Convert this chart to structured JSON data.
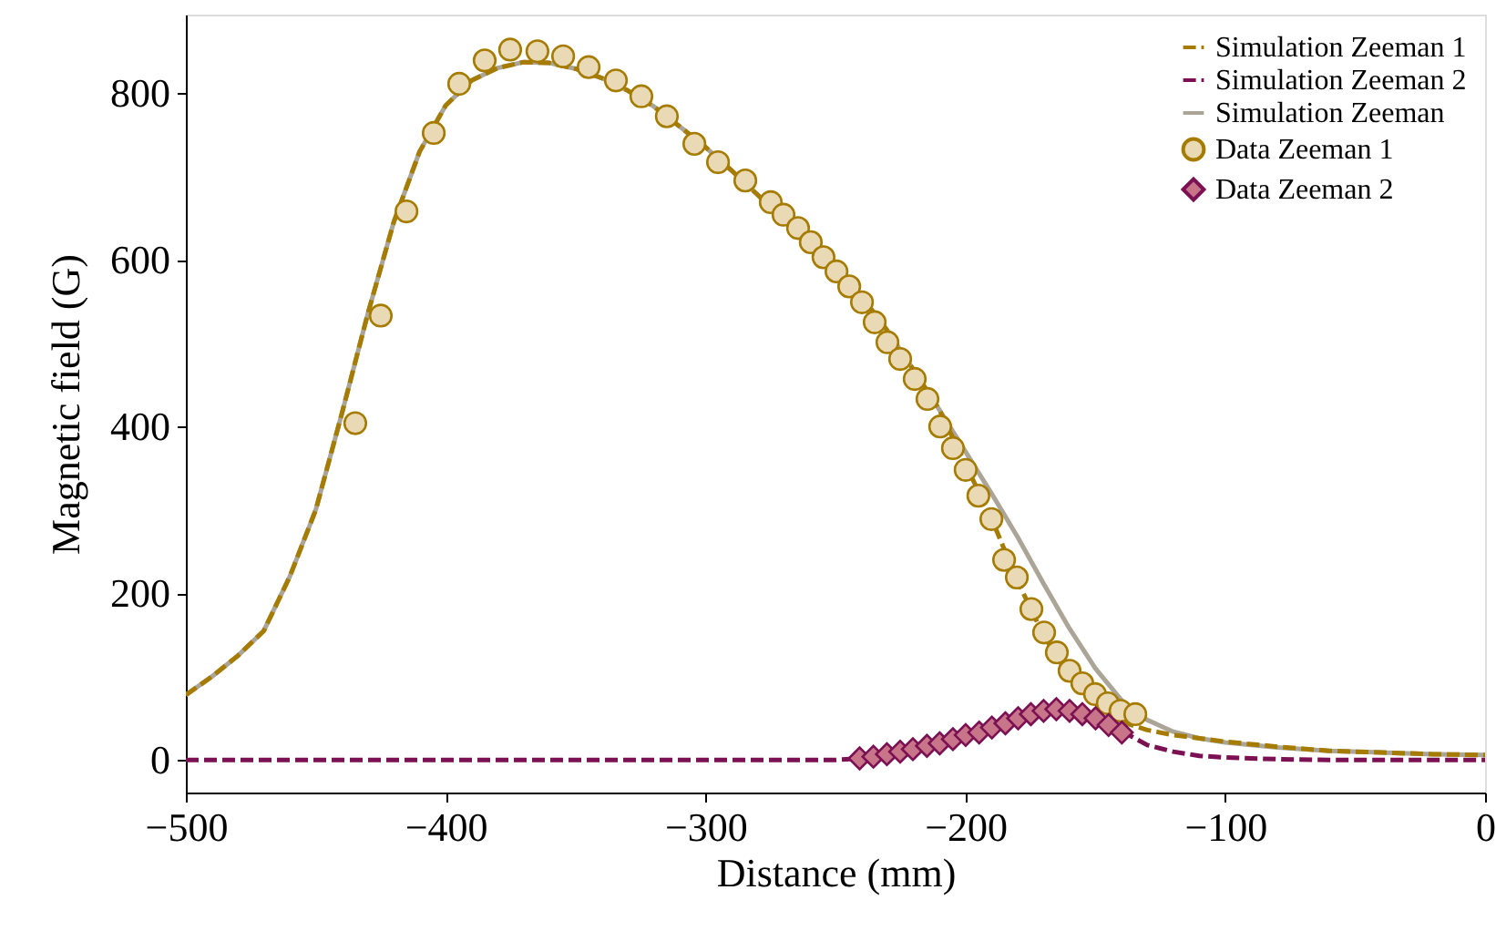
{
  "chart_data": {
    "type": "line",
    "xlabel": "Distance (mm)",
    "ylabel": "Magnetic field (G)",
    "xlim": [
      -500,
      0
    ],
    "ylim": [
      -39,
      894
    ],
    "xticks": [
      -500,
      -400,
      -300,
      -200,
      -100,
      0
    ],
    "yticks": [
      0,
      200,
      400,
      600,
      800
    ],
    "grid": false,
    "legend": "top right",
    "series": [
      {
        "name": "Simulation Zeeman 1",
        "line_style": "dashed",
        "color": "#a67c00",
        "x": [
          -500,
          -490,
          -480,
          -470,
          -460,
          -450,
          -440,
          -430,
          -420,
          -410,
          -400,
          -390,
          -380,
          -370,
          -360,
          -350,
          -340,
          -330,
          -320,
          -310,
          -300,
          -290,
          -280,
          -270,
          -260,
          -250,
          -240,
          -230,
          -220,
          -210,
          -200,
          -190,
          -180,
          -170,
          -160,
          -150,
          -140,
          -130,
          -120,
          -100,
          -80,
          -60,
          -40,
          -20,
          0
        ],
        "values": [
          78,
          100,
          125,
          155,
          220,
          300,
          415,
          535,
          645,
          730,
          785,
          815,
          830,
          837,
          836,
          829,
          818,
          803,
          784,
          760,
          735,
          707,
          678,
          648,
          620,
          590,
          556,
          515,
          468,
          420,
          355,
          290,
          215,
          150,
          100,
          68,
          46,
          36,
          30,
          22,
          16,
          11,
          9,
          7,
          6
        ]
      },
      {
        "name": "Simulation Zeeman 2",
        "line_style": "dashed",
        "color": "#7b1053",
        "x": [
          -500,
          -250,
          -240,
          -230,
          -220,
          -210,
          -200,
          -190,
          -180,
          -170,
          -160,
          -150,
          -140,
          -130,
          -120,
          -110,
          -100,
          -80,
          -60,
          0
        ],
        "values": [
          0,
          0,
          2,
          6,
          12,
          19,
          29,
          39,
          50,
          59,
          61,
          52,
          35,
          18,
          10,
          5,
          3,
          1,
          0,
          0
        ]
      },
      {
        "name": "Simulation Zeeman",
        "line_style": "solid",
        "color": "#aaa596",
        "x": [
          -500,
          -490,
          -480,
          -470,
          -460,
          -450,
          -440,
          -430,
          -420,
          -410,
          -400,
          -390,
          -380,
          -370,
          -360,
          -350,
          -340,
          -330,
          -320,
          -310,
          -300,
          -290,
          -280,
          -270,
          -260,
          -250,
          -240,
          -230,
          -220,
          -210,
          -200,
          -190,
          -180,
          -170,
          -160,
          -150,
          -140,
          -130,
          -120,
          -110,
          -100,
          -80,
          -60,
          -40,
          -20,
          0
        ],
        "values": [
          78,
          100,
          125,
          155,
          220,
          300,
          415,
          535,
          645,
          730,
          785,
          815,
          830,
          837,
          836,
          829,
          818,
          803,
          784,
          760,
          735,
          707,
          678,
          648,
          620,
          590,
          556,
          515,
          468,
          420,
          370,
          320,
          268,
          212,
          158,
          110,
          72,
          48,
          34,
          26,
          21,
          15,
          11,
          9,
          7,
          6
        ]
      },
      {
        "name": "Data Zeeman 1",
        "type": "scatter",
        "marker": "circle",
        "color": "#ead9b5",
        "x": [
          -434.8,
          -425.0,
          -415.1,
          -404.6,
          -394.8,
          -385.0,
          -375.2,
          -364.7,
          -354.8,
          -345.0,
          -334.5,
          -324.7,
          -314.9,
          -304.3,
          -295.2,
          -284.7,
          -274.9,
          -270.0,
          -264.4,
          -259.5,
          -254.6,
          -249.6,
          -244.7,
          -239.8,
          -234.9,
          -230.0,
          -225.1,
          -219.5,
          -214.6,
          -209.7,
          -204.8,
          -199.9,
          -195.0,
          -190.0,
          -185.1,
          -180.2,
          -174.6,
          -169.7,
          -164.8,
          -159.9,
          -155.0,
          -150.1,
          -145.2,
          -140.3,
          -134.6
        ],
        "values": [
          404,
          533,
          658,
          752,
          811,
          839,
          852,
          850,
          844,
          831,
          815,
          796,
          772,
          739,
          717,
          695,
          669,
          654,
          638,
          621,
          603,
          586,
          568,
          549,
          525,
          501,
          481,
          457,
          433,
          400,
          374,
          348,
          317,
          289,
          240,
          219,
          181,
          153,
          129,
          107,
          92,
          79,
          68,
          59,
          55
        ]
      },
      {
        "name": "Data Zeeman 2",
        "type": "scatter",
        "marker": "diamond",
        "color": "#c8758a",
        "x": [
          -240.7,
          -235.4,
          -230.2,
          -225.1,
          -220.2,
          -214.8,
          -209.9,
          -204.8,
          -199.9,
          -194.7,
          -189.8,
          -184.6,
          -179.7,
          -174.8,
          -169.9,
          -165.0,
          -159.9,
          -155.0,
          -149.9,
          -144.9,
          -139.8
        ],
        "values": [
          2,
          4,
          7,
          10,
          13,
          17,
          20,
          25,
          30,
          33,
          39,
          44,
          50,
          55,
          59,
          61,
          59,
          55,
          50,
          42,
          33
        ]
      }
    ]
  }
}
